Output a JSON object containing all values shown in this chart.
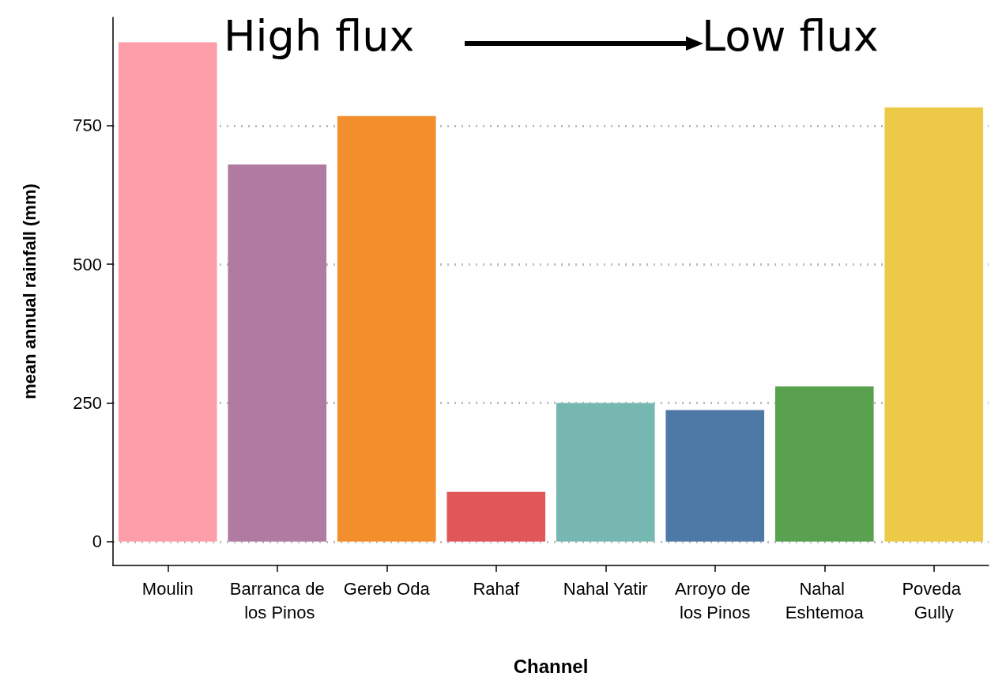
{
  "chart_data": {
    "type": "bar",
    "xlabel": "Channel",
    "ylabel": "mean annual rainfall (mm)",
    "categories": [
      "Moulin",
      "Barranca de los Pinos",
      "Gereb Oda",
      "Rahaf",
      "Nahal Yatir",
      "Arroyo de los Pinos",
      "Nahal Eshtemoa",
      "Poveda Gully"
    ],
    "values": [
      900,
      680,
      767,
      90,
      250,
      237,
      280,
      783
    ],
    "colors": [
      "#fe9ea8",
      "#b07aa1",
      "#f28e2b",
      "#e15759",
      "#76b7b2",
      "#4e79a7",
      "#59a14f",
      "#edc948"
    ],
    "ylim": [
      -43,
      945
    ],
    "yticks": [
      0,
      250,
      500,
      750
    ],
    "grid": "y",
    "annotations": [
      "High flux",
      "Low flux"
    ]
  }
}
